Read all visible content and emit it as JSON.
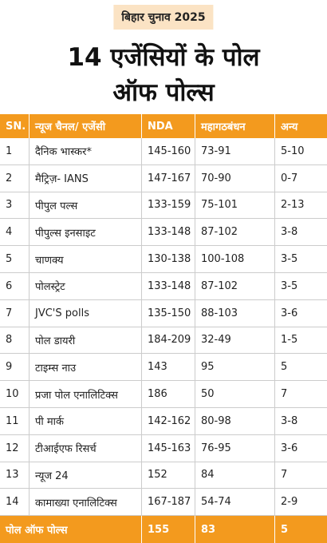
{
  "header": {
    "badge": "बिहार चुनाव 2025",
    "title_line1": "14 एजेंसियों के पोल",
    "title_line2": "ऑफ पोल्स"
  },
  "table": {
    "columns": [
      "SN.",
      "न्यूज चैनल/ एजेंसी",
      "NDA",
      "महागठबंधन",
      "अन्य"
    ],
    "rows": [
      [
        "1",
        "दैनिक भास्कर*",
        "145-160",
        "73-91",
        "5-10"
      ],
      [
        "2",
        "मैट्रिज़- IANS",
        "147-167",
        "70-90",
        "0-7"
      ],
      [
        "3",
        "पीपुल पल्स",
        "133-159",
        "75-101",
        "2-13"
      ],
      [
        "4",
        "पीपुल्स इनसाइट",
        "133-148",
        "87-102",
        "3-8"
      ],
      [
        "5",
        "चाणक्य",
        "130-138",
        "100-108",
        "3-5"
      ],
      [
        "6",
        "पोलस्ट्रेट",
        "133-148",
        "87-102",
        "3-5"
      ],
      [
        "7",
        "JVC'S polls",
        "135-150",
        "88-103",
        "3-6"
      ],
      [
        "8",
        "पोल डायरी",
        "184-209",
        "32-49",
        "1-5"
      ],
      [
        "9",
        "टाइम्स नाउ",
        "143",
        "95",
        "5"
      ],
      [
        "10",
        "प्रजा पोल एनालिटिक्स",
        "186",
        "50",
        "7"
      ],
      [
        "11",
        "पी मार्क",
        "142-162",
        "80-98",
        "3-8"
      ],
      [
        "12",
        "टीआईएफ रिसर्च",
        "145-163",
        "76-95",
        "3-6"
      ],
      [
        "13",
        "न्यूज 24",
        "152",
        "84",
        "7"
      ],
      [
        "14",
        "कामाख्या एनालिटिक्स",
        "167-187",
        "54-74",
        "2-9"
      ]
    ],
    "footer": [
      "पोल ऑफ पोल्स",
      "155",
      "83",
      "5"
    ]
  }
}
